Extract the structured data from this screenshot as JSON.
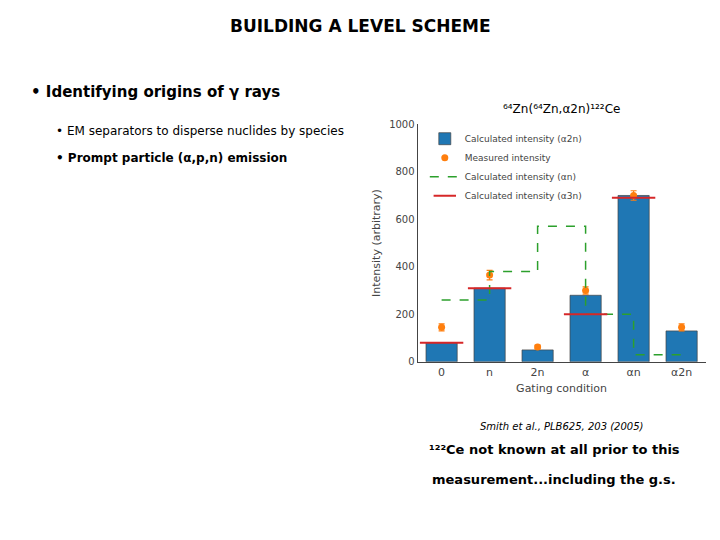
{
  "chart_data": {
    "type": "bar",
    "title": "⁶⁴Zn(⁶⁴Zn,α2n)¹²²Ce",
    "categories": [
      "0",
      "n",
      "2n",
      "α",
      "αn",
      "α2n"
    ],
    "series": [
      {
        "name": "Calculated intensity (α2n)",
        "type": "bar",
        "values": [
          80,
          310,
          50,
          280,
          700,
          130
        ]
      },
      {
        "name": "Measured intensity",
        "type": "scatter",
        "marker": "circle",
        "values": [
          145,
          365,
          62,
          300,
          700,
          145
        ],
        "errors": [
          15,
          20,
          8,
          15,
          20,
          15
        ]
      },
      {
        "name": "Calculated intensity (αn)",
        "type": "line",
        "line_style": "dashed",
        "values": [
          260,
          260,
          380,
          570,
          200,
          30
        ]
      },
      {
        "name": "Calculated intensity (α3n)",
        "type": "scatter",
        "marker": "dash",
        "values": [
          80,
          310,
          null,
          200,
          690,
          null
        ]
      }
    ],
    "xlabel": "Gating condition",
    "ylabel": "Intensity (arbitrary)",
    "ylim": [
      0,
      1000
    ],
    "yticks": [
      0,
      200,
      400,
      600,
      800,
      1000
    ],
    "grid": false,
    "legend": "upper left",
    "annotations": [
      "BUILDING A LEVEL SCHEME",
      "• Identifying origins of γ rays",
      "• EM separators to disperse nuclides by species",
      "• Prompt particle (α,p,n) emission",
      "Smith et al., PLB625, 203 (2005)",
      "¹²²Ce not known at all prior to this",
      "measurement...including the g.s."
    ]
  }
}
